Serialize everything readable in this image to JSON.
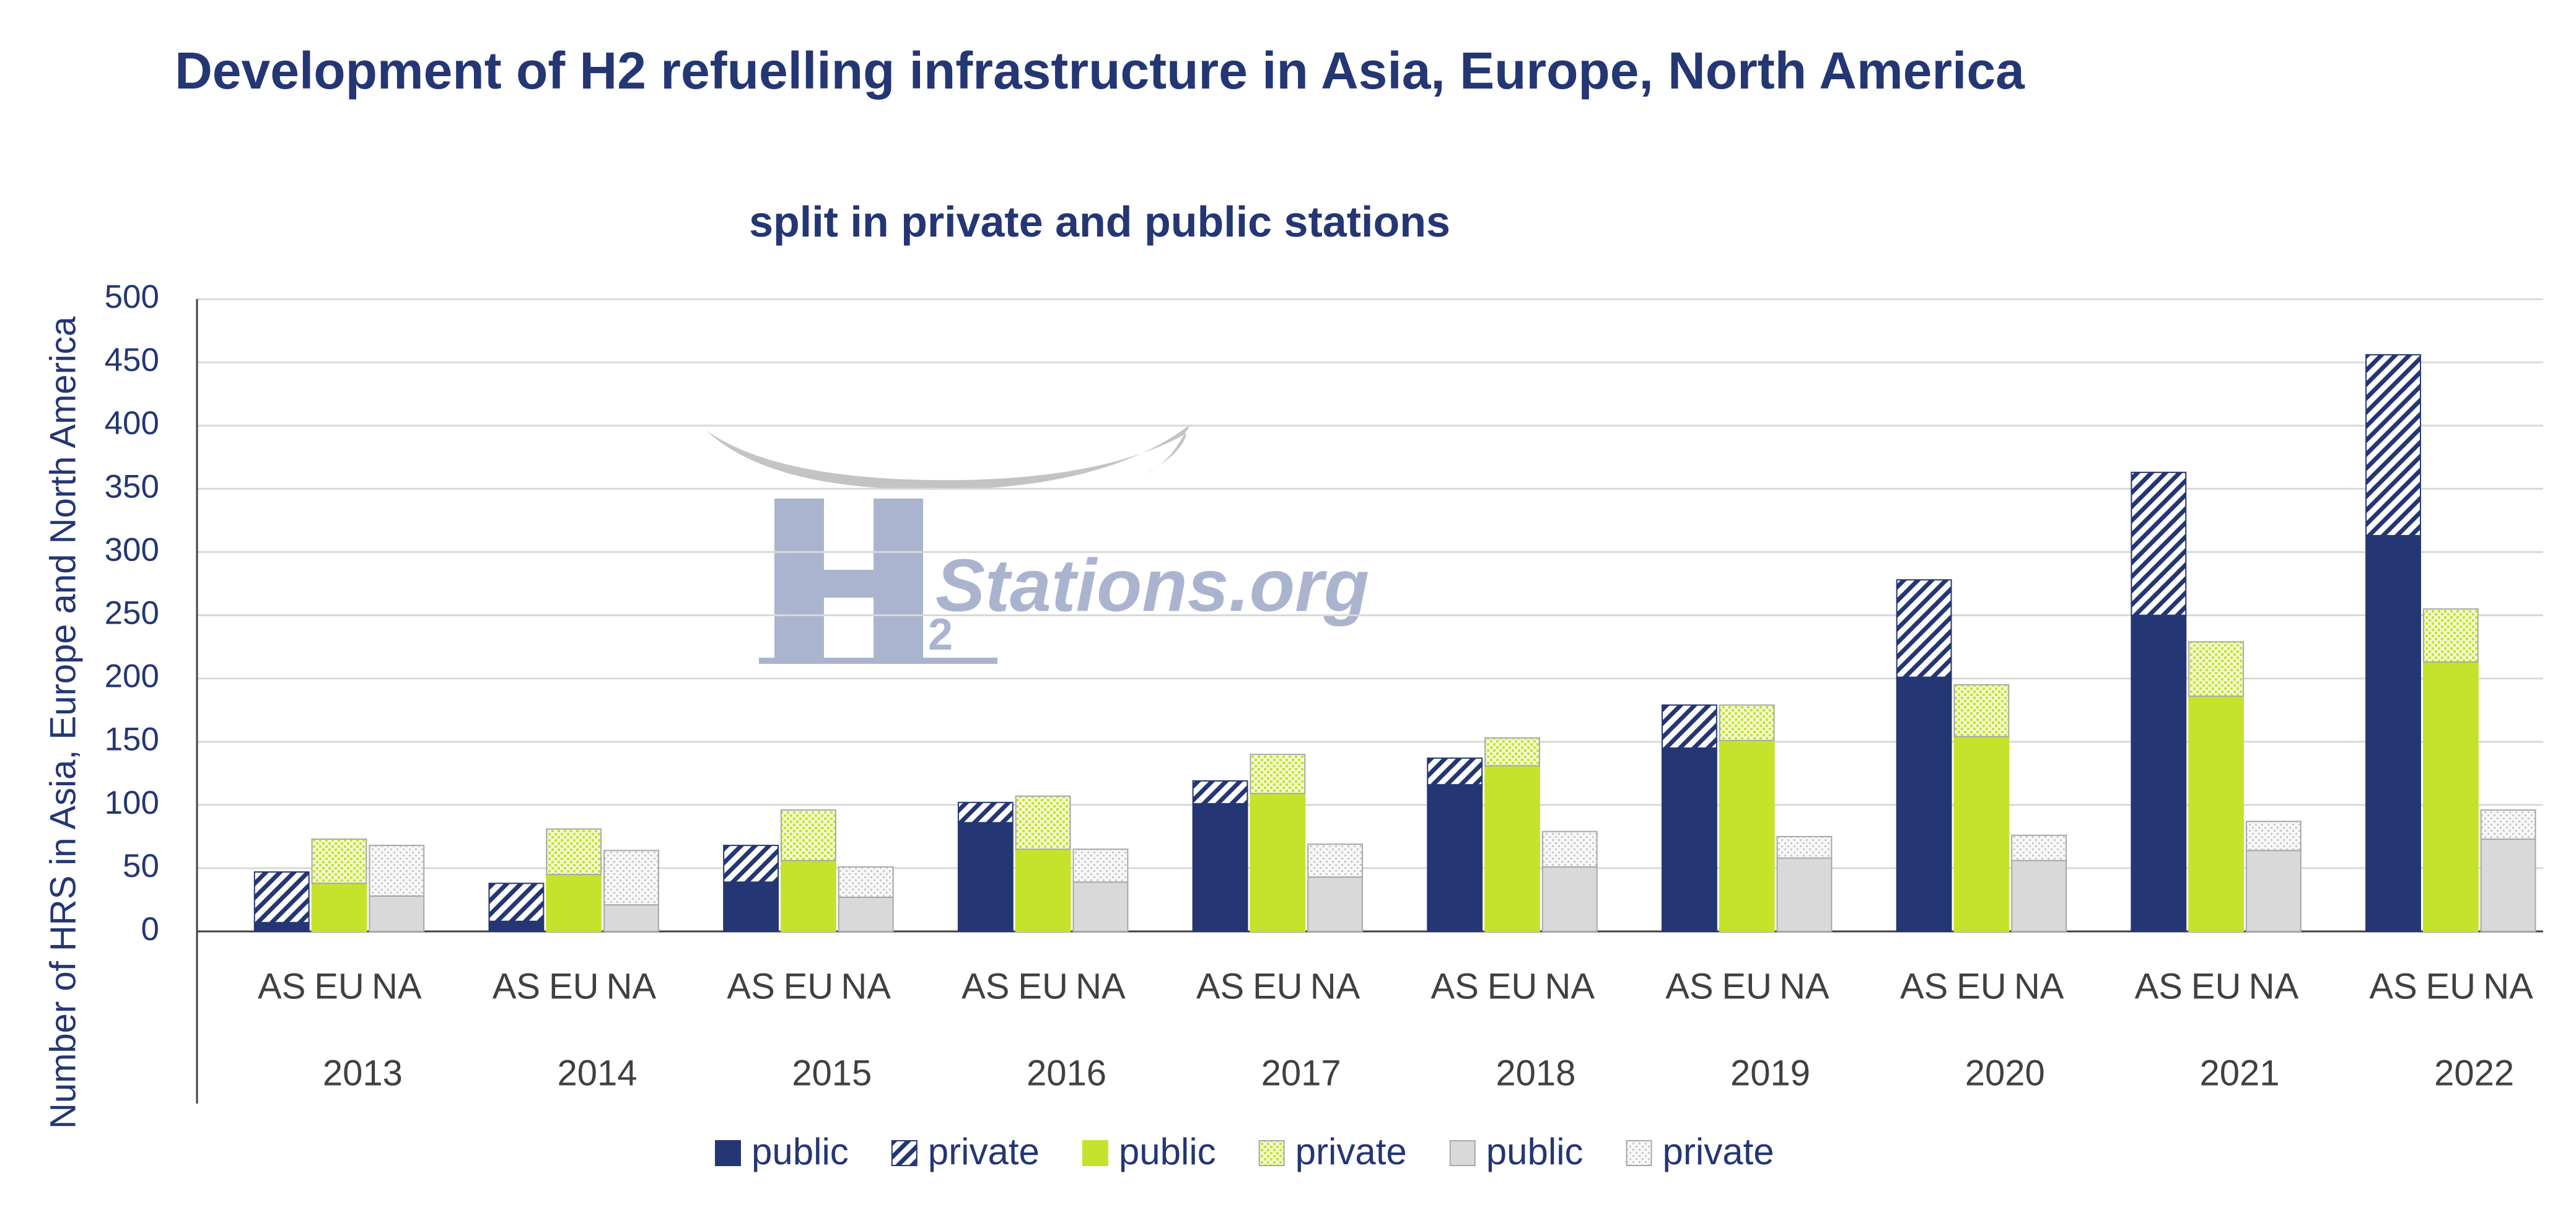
{
  "chart_data": {
    "type": "grouped-stacked-bar",
    "title": "Development of H2 refuelling infrastructure in Asia, Europe, North America",
    "subtitle": "split in private and public stations",
    "ylabel": "Number of HRS in Asia, Europe and North America",
    "watermark": {
      "subscript": "2",
      "text": "Stations.org"
    },
    "categories": [
      "2013",
      "2014",
      "2015",
      "2016",
      "2017",
      "2018",
      "2019",
      "2020",
      "2021",
      "2022"
    ],
    "groups": [
      {
        "label": "AS",
        "series": [
          {
            "name": "public",
            "color": "#243673",
            "values": [
              7,
              8,
              39,
              86,
              101,
              116,
              145,
              201,
              250,
              313
            ]
          },
          {
            "name": "private",
            "color": "#243673",
            "pattern": "diagonal",
            "values": [
              40,
              30,
              29,
              16,
              18,
              21,
              34,
              77,
              113,
              143
            ]
          }
        ]
      },
      {
        "label": "EU",
        "series": [
          {
            "name": "public",
            "color": "#c5e32b",
            "values": [
              38,
              45,
              56,
              65,
              109,
              131,
              151,
              154,
              186,
              213
            ]
          },
          {
            "name": "private",
            "color": "#c5e32b",
            "pattern": "dots",
            "values": [
              35,
              36,
              40,
              42,
              31,
              22,
              28,
              41,
              43,
              42
            ]
          }
        ]
      },
      {
        "label": "NA",
        "series": [
          {
            "name": "public",
            "color": "#d9d9d9",
            "values": [
              28,
              21,
              27,
              39,
              43,
              51,
              58,
              56,
              64,
              73
            ]
          },
          {
            "name": "private",
            "color": "#b8b8b8",
            "pattern": "dots",
            "values": [
              40,
              43,
              24,
              26,
              26,
              28,
              17,
              20,
              23,
              23
            ]
          }
        ]
      }
    ],
    "ylim": [
      0,
      500
    ],
    "yticks": [
      0,
      50,
      100,
      150,
      200,
      250,
      300,
      350,
      400,
      450,
      500
    ],
    "grid": true,
    "legend": "bottom"
  }
}
